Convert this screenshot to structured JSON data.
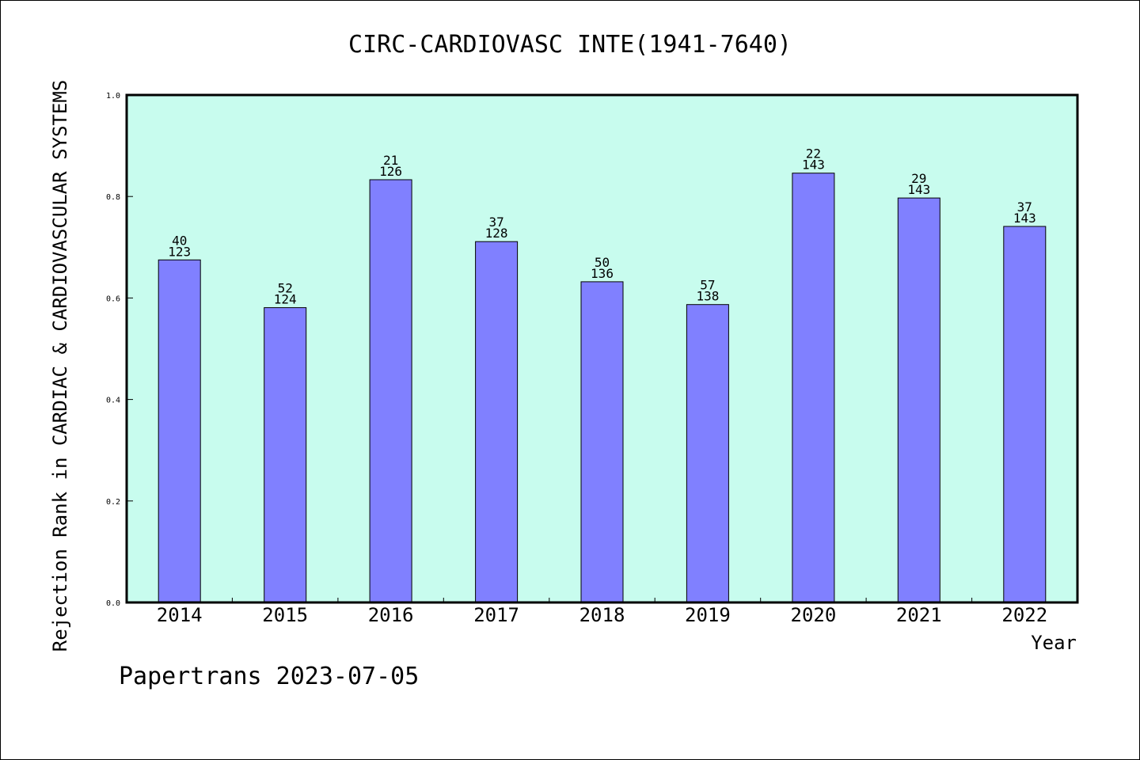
{
  "chart_data": {
    "type": "bar",
    "title": "CIRC-CARDIOVASC INTE(1941-7640)",
    "xlabel": "Year",
    "ylabel": "Rejection Rank in CARDIAC & CARDIOVASCULAR SYSTEMS",
    "ylim": [
      0,
      1.0
    ],
    "yticks": [
      "0.0",
      "0.2",
      "0.4",
      "0.6",
      "0.8",
      "1.0"
    ],
    "categories": [
      "2014",
      "2015",
      "2016",
      "2017",
      "2018",
      "2019",
      "2020",
      "2021",
      "2022"
    ],
    "values": [
      0.675,
      0.581,
      0.833,
      0.711,
      0.632,
      0.587,
      0.846,
      0.797,
      0.741
    ],
    "labels_top": [
      "40",
      "52",
      "21",
      "37",
      "50",
      "57",
      "22",
      "29",
      "37"
    ],
    "labels_bottom": [
      "123",
      "124",
      "126",
      "128",
      "136",
      "138",
      "143",
      "143",
      "143"
    ],
    "grid": false,
    "colors": {
      "plot_background": "#c8fcee",
      "bar_fill": "#8080ff",
      "bar_stroke": "#000000"
    }
  },
  "footer": {
    "text": "Papertrans 2023-07-05"
  }
}
